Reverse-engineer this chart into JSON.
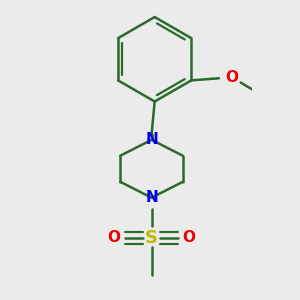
{
  "background_color": "#ebebeb",
  "bond_color": "#2a6a2a",
  "N_color": "#0000ee",
  "O_color": "#ee0000",
  "S_color": "#bbbb00",
  "line_width": 1.8,
  "font_size_atom": 10,
  "figsize": [
    3.0,
    3.0
  ],
  "dpi": 100,
  "xlim": [
    -0.5,
    0.8
  ],
  "ylim": [
    -0.85,
    1.05
  ]
}
